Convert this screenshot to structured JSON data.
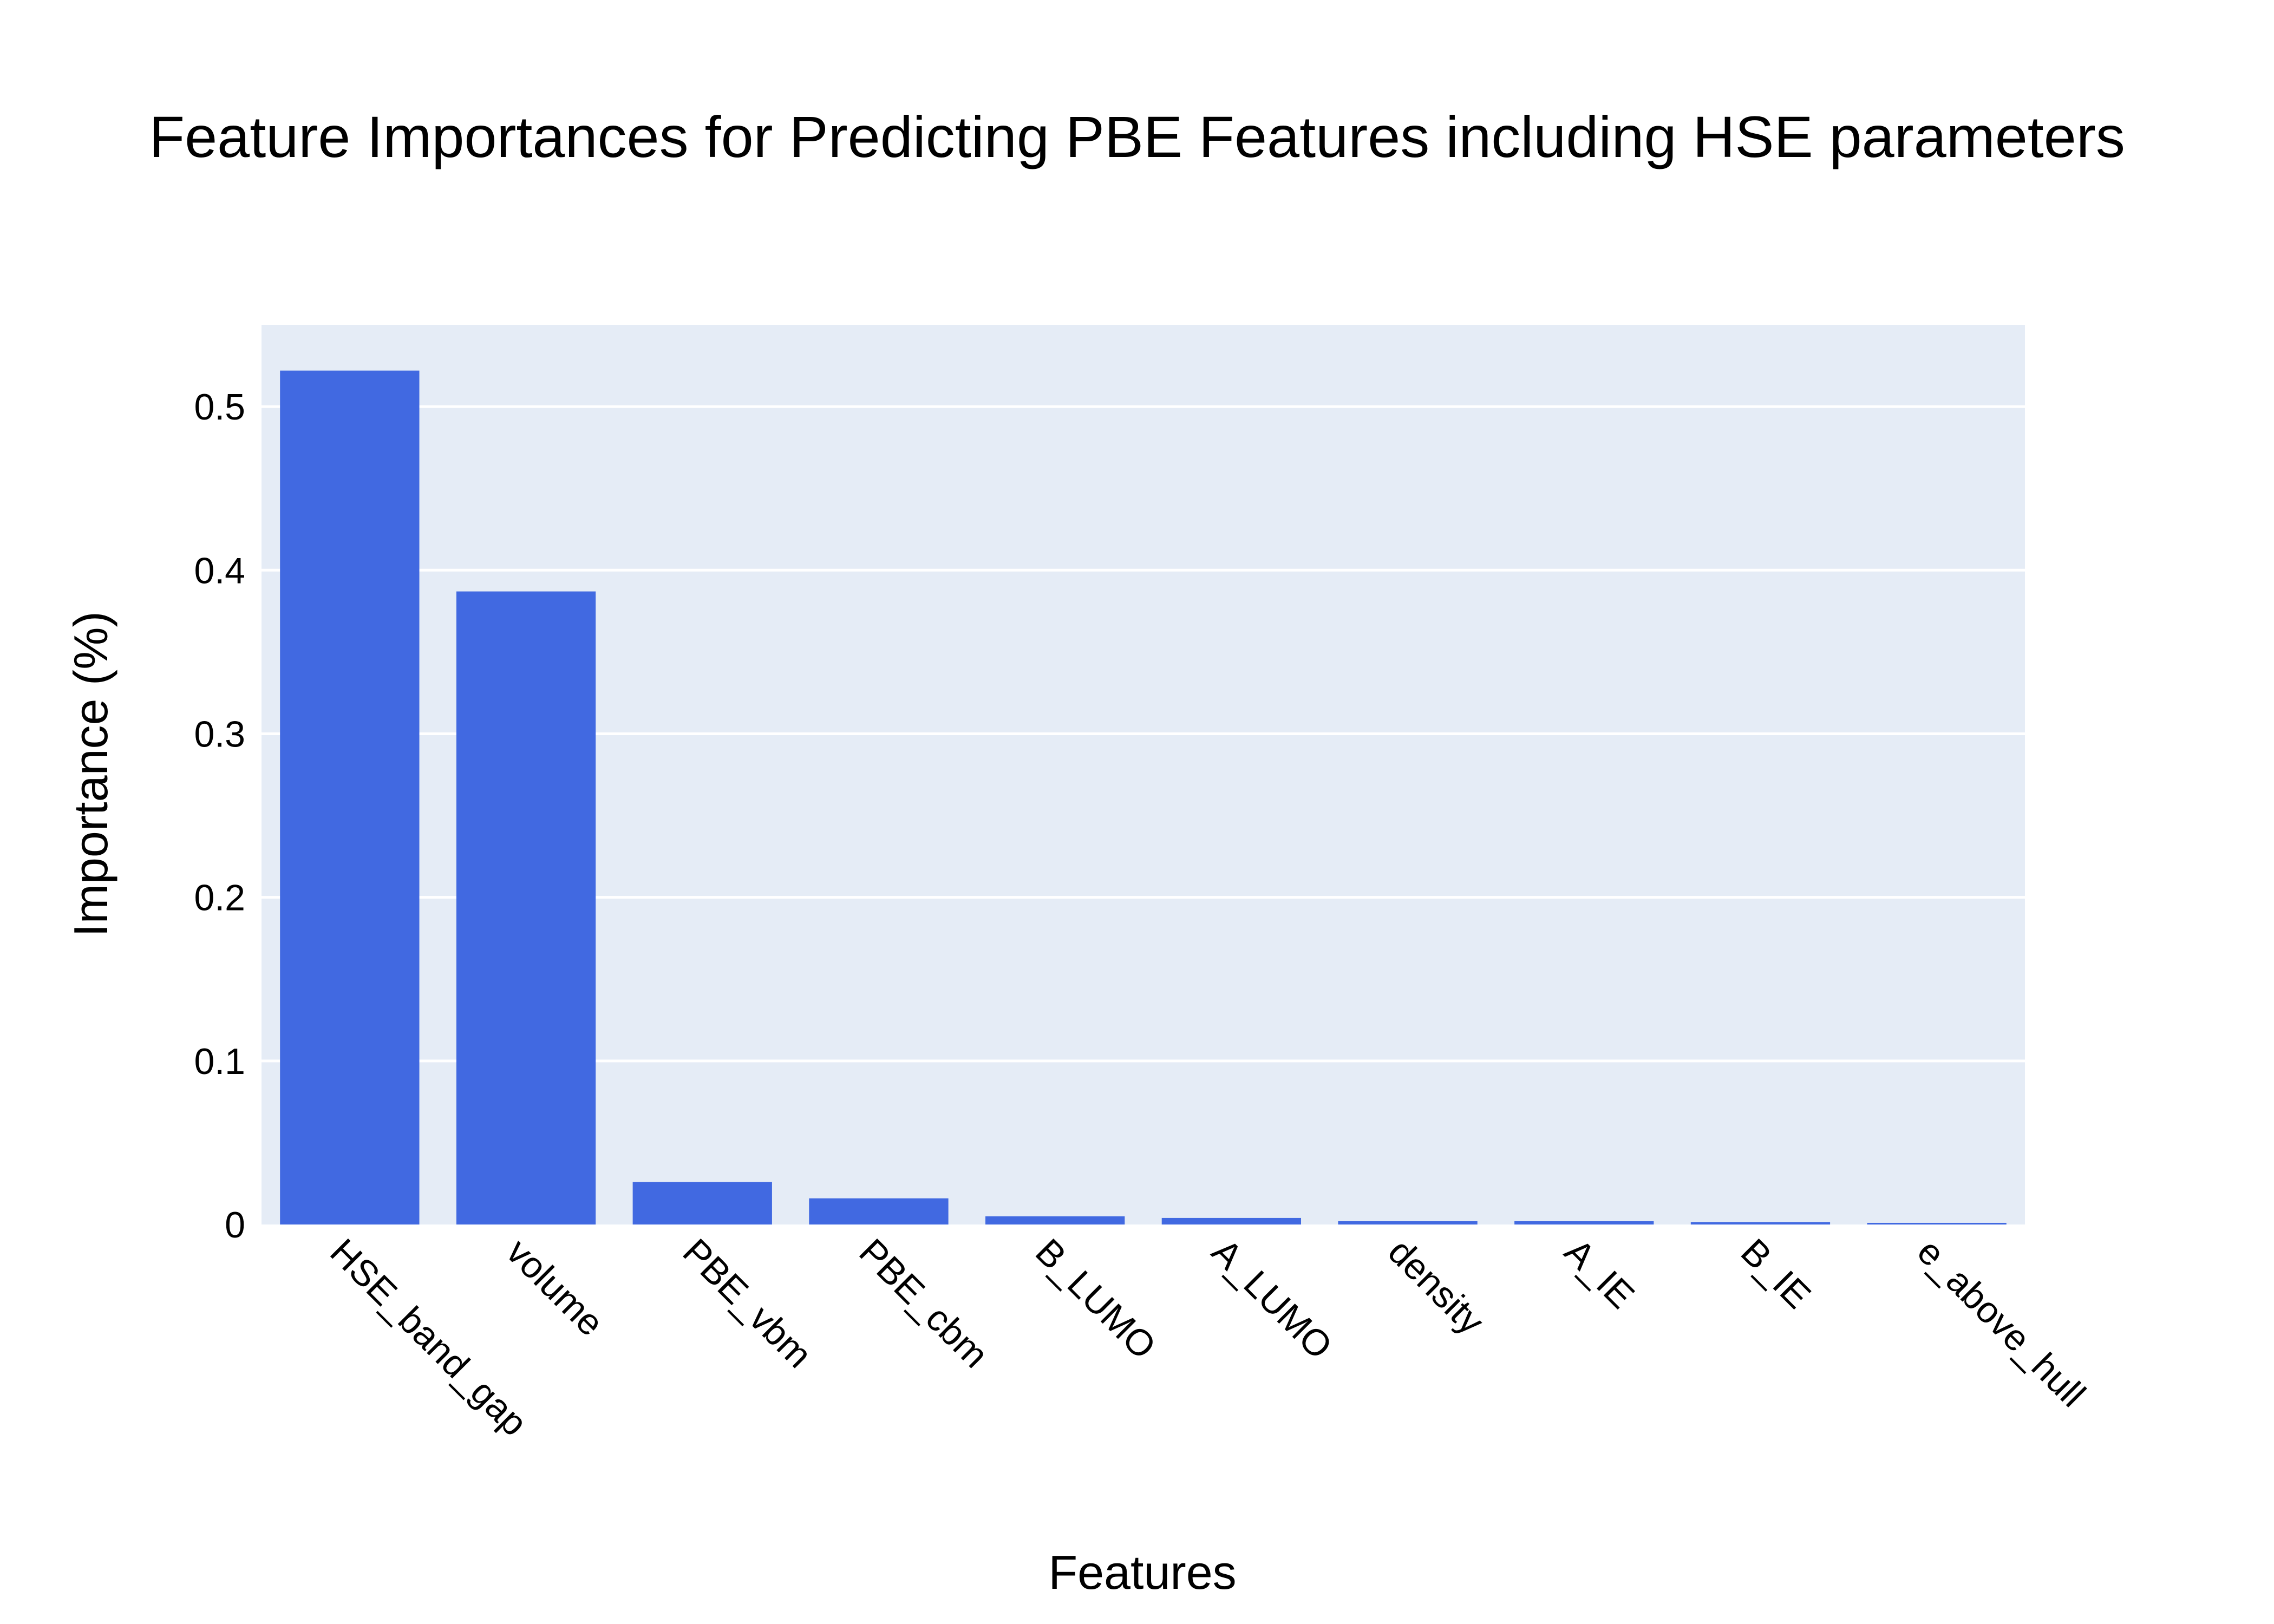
{
  "chart_data": {
    "type": "bar",
    "title": "Feature Importances for Predicting PBE Features including HSE parameters",
    "xlabel": "Features",
    "ylabel": "Importance (%)",
    "categories": [
      "HSE_band_gap",
      "volume",
      "PBE_vbm",
      "PBE_cbm",
      "B_LUMO",
      "A_LUMO",
      "density",
      "A_IE",
      "B_IE",
      "e_above_hull"
    ],
    "values": [
      0.522,
      0.387,
      0.026,
      0.016,
      0.005,
      0.004,
      0.002,
      0.002,
      0.0015,
      0.001
    ],
    "ylim": [
      0,
      0.55
    ],
    "yticks": [
      0,
      0.1,
      0.2,
      0.3,
      0.4,
      0.5
    ],
    "ytick_labels": [
      "0",
      "0.1",
      "0.2",
      "0.3",
      "0.4",
      "0.5"
    ],
    "grid": true,
    "legend": "none",
    "colors": {
      "bar": "#4169E1",
      "plot_background": "#E5ECF6",
      "grid": "#FFFFFF"
    }
  }
}
